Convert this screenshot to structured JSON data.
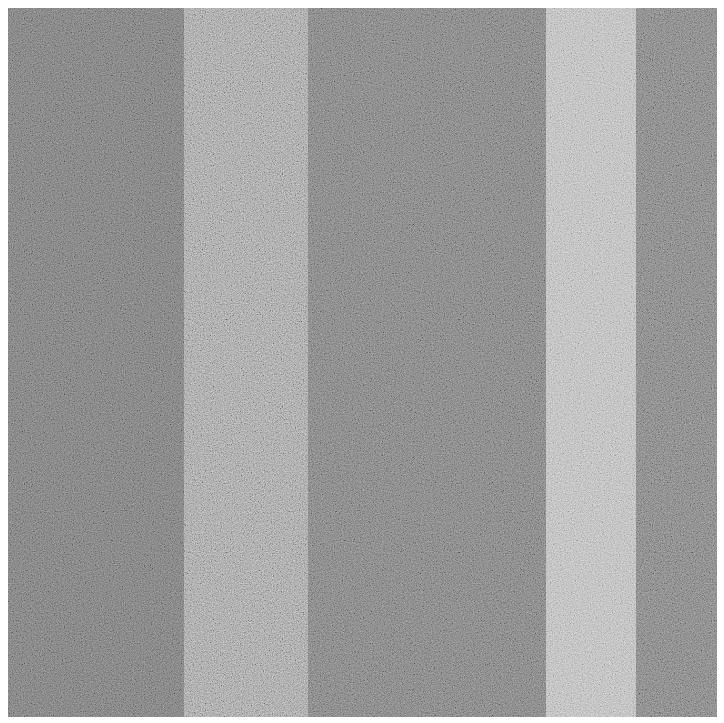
{
  "image": {
    "description_tag": "noise-texture",
    "colors": {
      "background": "#ffffff",
      "base_gray": "#6e6e6e"
    },
    "bands": [
      {
        "name": "left-dark-band",
        "shade": "#666666"
      },
      {
        "name": "center-light-band",
        "shade": "#858585"
      },
      {
        "name": "center-dark-band",
        "shade": "#6a6a6a"
      },
      {
        "name": "bright-strip",
        "shade": "#a4a4a4"
      },
      {
        "name": "right-dark-band",
        "shade": "#6c6c6c"
      }
    ]
  }
}
